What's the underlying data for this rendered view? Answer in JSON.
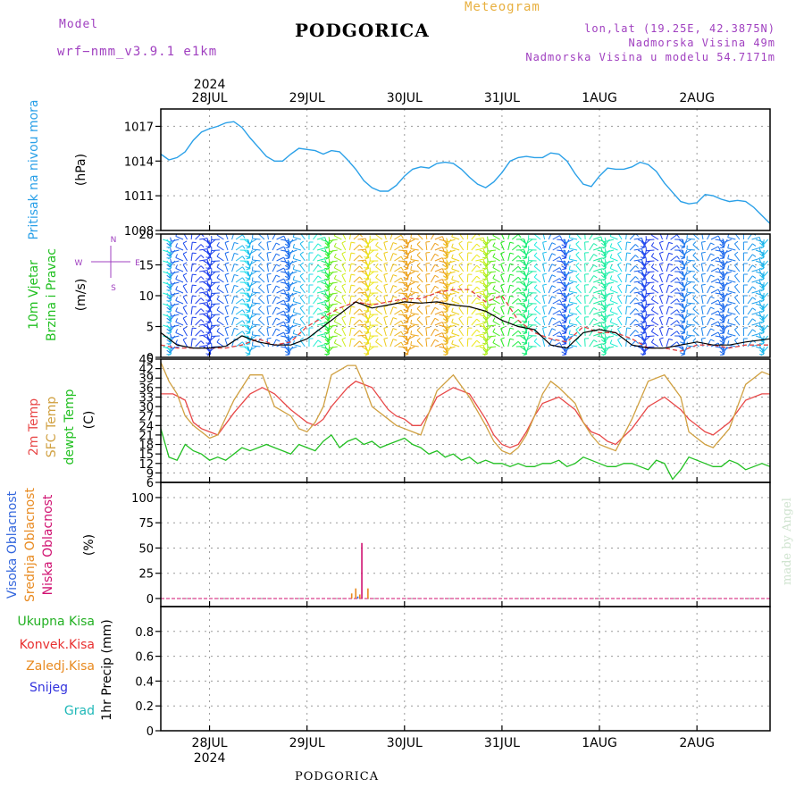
{
  "header": {
    "model_label": "Model",
    "model_name": "wrf−nmm_v3.9.1  e1km",
    "station": "PODGORICA",
    "meteogram_label": "Meteogram",
    "coords": "lon,lat (19.25E, 42.3875N)",
    "elevation": "Nadmorska Visina 49m",
    "model_elevation": "Nadmorska Visina u modelu 54.7171m"
  },
  "footer": {
    "station": "PODGORICA",
    "credit": "made by Angel"
  },
  "colors": {
    "pressure": "#2aa0e8",
    "wind_speed": "#000000",
    "wind_gust": "#e04040",
    "temp2m": "#e84848",
    "temp_sfc": "#d0a040",
    "dewpoint": "#22c022",
    "cloud_high": "#3366dd",
    "cloud_mid": "#e88a20",
    "cloud_low": "#d01070",
    "precip_total": "#22b022",
    "precip_conv": "#e83030",
    "precip_frz": "#e88a20",
    "snow": "#3333dd",
    "graupel": "#20b8b8",
    "title_purple": "#a040c0",
    "title_orange": "#e8b040"
  },
  "chart_data": [
    {
      "type": "line",
      "id": "pressure",
      "ylabel_main": "Pritisak na nivou mora",
      "ylabel_unit": "(hPa)",
      "ylim": [
        1008,
        1018.5
      ],
      "yticks": [
        1008,
        1011,
        1014,
        1017
      ],
      "x_axis": {
        "range": [
          0,
          150
        ],
        "major_ticks": [
          12,
          36,
          60,
          84,
          108,
          132
        ],
        "labels_top": [
          "28JUL",
          "29JUL",
          "30JUL",
          "31JUL",
          "1AUG",
          "2AUG"
        ],
        "labels_bottom": [
          "28JUL",
          "29JUL",
          "30JUL",
          "31JUL",
          "1AUG",
          "2AUG"
        ],
        "year": "2024"
      },
      "grid": true,
      "series": [
        {
          "x": [
            0,
            2,
            4,
            6,
            8,
            10,
            12,
            14,
            16,
            18,
            20,
            22,
            24,
            26,
            28,
            30,
            32,
            34,
            36,
            38,
            40,
            42,
            44,
            46,
            48,
            50,
            52,
            54,
            56,
            58,
            60,
            62,
            64,
            66,
            68,
            70,
            72,
            74,
            76,
            78,
            80,
            82,
            84,
            86,
            88,
            90,
            92,
            94,
            96,
            98,
            100,
            102,
            104,
            106,
            108,
            110,
            112,
            114,
            116,
            118,
            120,
            122,
            124,
            126,
            128,
            130,
            132,
            134,
            136,
            138,
            140,
            142,
            144,
            146,
            148,
            150
          ],
          "y": [
            1014.6,
            1014.1,
            1014.3,
            1014.8,
            1015.8,
            1016.5,
            1016.8,
            1017.0,
            1017.3,
            1017.4,
            1016.9,
            1016.0,
            1015.2,
            1014.4,
            1014.0,
            1014.0,
            1014.6,
            1015.1,
            1015.0,
            1014.9,
            1014.6,
            1014.9,
            1014.8,
            1014.1,
            1013.3,
            1012.3,
            1011.7,
            1011.4,
            1011.4,
            1011.9,
            1012.7,
            1013.3,
            1013.5,
            1013.4,
            1013.8,
            1013.9,
            1013.8,
            1013.3,
            1012.6,
            1012.0,
            1011.7,
            1012.2,
            1013.0,
            1014.0,
            1014.3,
            1014.4,
            1014.3,
            1014.3,
            1014.7,
            1014.6,
            1014.0,
            1012.9,
            1012.0,
            1011.8,
            1012.7,
            1013.4,
            1013.3,
            1013.3,
            1013.5,
            1013.9,
            1013.7,
            1013.1,
            1012.1,
            1011.3,
            1010.5,
            1010.3,
            1010.4,
            1011.1,
            1011.0,
            1010.7,
            1010.5,
            1010.6,
            1010.5,
            1010.0,
            1009.3,
            1008.6
          ]
        }
      ]
    },
    {
      "type": "line",
      "id": "wind",
      "ylabel_main": "10m Vjetar",
      "ylabel_main2": "Brzina i Pravac",
      "ylabel_unit": "(m/s)",
      "compass_labels": [
        "N",
        "W",
        "E",
        "S"
      ],
      "ylim": [
        0,
        20
      ],
      "yticks": [
        0,
        5,
        10,
        15,
        20
      ],
      "grid": true,
      "series": [
        {
          "name": "speed",
          "x": [
            0,
            4,
            8,
            12,
            16,
            20,
            24,
            28,
            32,
            36,
            40,
            44,
            48,
            52,
            56,
            60,
            64,
            68,
            72,
            76,
            80,
            84,
            88,
            92,
            96,
            100,
            104,
            108,
            112,
            116,
            120,
            124,
            128,
            132,
            136,
            140,
            144,
            150
          ],
          "y": [
            4.0,
            2.0,
            1.5,
            1.5,
            1.8,
            3.5,
            2.5,
            2.0,
            2.0,
            3.0,
            5.0,
            7.0,
            9.0,
            8.0,
            8.5,
            9.0,
            8.8,
            9.0,
            8.5,
            8.2,
            7.5,
            6.0,
            5.0,
            4.5,
            2.0,
            1.5,
            4.0,
            4.5,
            4.0,
            2.0,
            1.5,
            1.5,
            2.0,
            2.5,
            2.0,
            2.0,
            2.5,
            3.0
          ]
        },
        {
          "name": "gust",
          "x": [
            0,
            4,
            8,
            12,
            16,
            20,
            24,
            28,
            32,
            36,
            40,
            44,
            48,
            52,
            56,
            60,
            64,
            68,
            72,
            76,
            80,
            84,
            88,
            92,
            96,
            100,
            104,
            108,
            112,
            116,
            120,
            124,
            128,
            132,
            136,
            140,
            144,
            150
          ],
          "y": [
            2.0,
            1.5,
            1.5,
            1.5,
            1.5,
            2.0,
            3.0,
            2.0,
            2.5,
            5.0,
            6.5,
            8.0,
            9.0,
            8.5,
            9.0,
            9.5,
            9.5,
            10.5,
            11.0,
            11.0,
            9.0,
            10.0,
            6.0,
            4.0,
            3.0,
            2.5,
            5.0,
            4.0,
            4.0,
            3.0,
            1.5,
            1.5,
            1.0,
            2.0,
            2.0,
            1.5,
            2.0,
            2.0
          ]
        }
      ]
    },
    {
      "type": "line",
      "id": "temperature",
      "ylabel_main": "2m Temp",
      "ylabel_main2": "SFC Temp",
      "ylabel_main3": "dewpt Temp",
      "ylabel_unit": "(C)",
      "ylim": [
        6,
        45
      ],
      "yticks": [
        6,
        9,
        12,
        15,
        18,
        21,
        24,
        27,
        30,
        33,
        36,
        39,
        42,
        45
      ],
      "grid": true,
      "series": [
        {
          "name": "2m Temp",
          "x": [
            0,
            3,
            6,
            8,
            10,
            12,
            14,
            18,
            22,
            25,
            28,
            32,
            34,
            36,
            38,
            40,
            42,
            46,
            48,
            52,
            56,
            58,
            60,
            62,
            64,
            66,
            68,
            72,
            76,
            80,
            82,
            84,
            86,
            88,
            90,
            92,
            94,
            98,
            102,
            104,
            106,
            108,
            110,
            112,
            116,
            120,
            124,
            128,
            130,
            132,
            134,
            136,
            140,
            144,
            148,
            150
          ],
          "y": [
            34,
            34,
            32,
            25,
            23,
            22,
            21,
            28,
            34,
            36,
            34,
            29,
            27,
            25,
            24,
            26,
            30,
            36,
            38,
            36,
            29,
            27,
            26,
            24,
            24,
            28,
            33,
            36,
            34,
            26,
            21,
            18,
            17,
            18,
            22,
            27,
            31,
            33,
            29,
            25,
            22,
            21,
            19,
            18,
            23,
            30,
            33,
            29,
            26,
            24,
            22,
            21,
            25,
            32,
            34,
            34
          ]
        },
        {
          "name": "SFC Temp",
          "x": [
            0,
            2,
            4,
            6,
            8,
            10,
            12,
            14,
            18,
            22,
            25,
            28,
            32,
            34,
            36,
            38,
            40,
            42,
            46,
            48,
            50,
            52,
            56,
            58,
            60,
            62,
            64,
            66,
            68,
            72,
            76,
            80,
            82,
            84,
            86,
            88,
            90,
            92,
            94,
            96,
            98,
            102,
            104,
            106,
            108,
            110,
            112,
            116,
            120,
            124,
            128,
            130,
            132,
            134,
            136,
            140,
            144,
            148,
            150
          ],
          "y": [
            44,
            38,
            34,
            27,
            24,
            22,
            20,
            21,
            32,
            40,
            40,
            30,
            27,
            23,
            22,
            25,
            30,
            40,
            43,
            43,
            37,
            30,
            26,
            24,
            23,
            22,
            21,
            28,
            35,
            40,
            33,
            24,
            19,
            16,
            15,
            17,
            21,
            27,
            34,
            38,
            36,
            31,
            25,
            21,
            18,
            17,
            16,
            26,
            38,
            40,
            33,
            22,
            20,
            18,
            17,
            23,
            37,
            41,
            40
          ]
        },
        {
          "name": "dewpt Temp",
          "x": [
            0,
            2,
            4,
            6,
            8,
            10,
            12,
            14,
            16,
            18,
            20,
            22,
            24,
            26,
            28,
            30,
            32,
            34,
            36,
            38,
            40,
            42,
            44,
            46,
            48,
            50,
            52,
            54,
            56,
            58,
            60,
            62,
            64,
            66,
            68,
            70,
            72,
            74,
            76,
            78,
            80,
            82,
            84,
            86,
            88,
            90,
            92,
            94,
            96,
            98,
            100,
            102,
            104,
            106,
            108,
            110,
            112,
            114,
            116,
            118,
            120,
            122,
            124,
            126,
            128,
            130,
            132,
            134,
            136,
            138,
            140,
            142,
            144,
            146,
            148,
            150
          ],
          "y": [
            23,
            14,
            13,
            18,
            16,
            15,
            13,
            14,
            13,
            15,
            17,
            16,
            17,
            18,
            17,
            16,
            15,
            18,
            17,
            16,
            19,
            21,
            17,
            19,
            20,
            18,
            19,
            17,
            18,
            19,
            20,
            18,
            17,
            15,
            16,
            14,
            15,
            13,
            14,
            12,
            13,
            12,
            12,
            11,
            12,
            11,
            11,
            12,
            12,
            13,
            11,
            12,
            14,
            13,
            12,
            11,
            11,
            12,
            12,
            11,
            10,
            13,
            12,
            7,
            10,
            14,
            13,
            12,
            11,
            11,
            13,
            12,
            10,
            11,
            12,
            11
          ]
        }
      ]
    },
    {
      "type": "bar",
      "id": "clouds",
      "ylabel_main": "Visoka Oblacnost",
      "ylabel_main2": "Srednja Oblacnost",
      "ylabel_main3": "Niska Oblacnost",
      "ylabel_unit": "(%)",
      "ylim": [
        -8,
        115
      ],
      "yticks": [
        0,
        25,
        50,
        75,
        100
      ],
      "grid": true,
      "series": [
        {
          "name": "Visoka Oblacnost",
          "x": [
            48.5
          ],
          "y": [
            2
          ]
        },
        {
          "name": "Srednja Oblacnost",
          "x": [
            47,
            48,
            49,
            51
          ],
          "y": [
            5,
            10,
            4,
            10
          ]
        },
        {
          "name": "Niska Oblacnost",
          "x": [
            49.5
          ],
          "y": [
            55
          ]
        }
      ]
    },
    {
      "type": "bar",
      "id": "precip",
      "ylabel_unit": "1hr Precip (mm)",
      "legend": [
        "Ukupna Kisa",
        "Konvek.Kisa",
        "Zaledj.Kisa",
        "Snijeg",
        "Grad"
      ],
      "ylim": [
        0,
        1
      ],
      "yticks": [
        0,
        0.2,
        0.4,
        0.6,
        0.8
      ],
      "grid": true,
      "series": [
        {
          "name": "Ukupna Kisa",
          "x": [],
          "y": []
        }
      ]
    }
  ]
}
